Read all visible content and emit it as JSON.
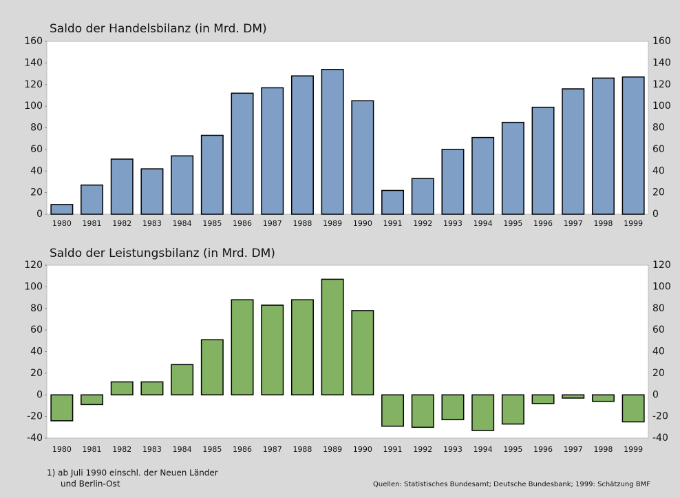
{
  "chart_data": [
    {
      "type": "bar",
      "title": "Saldo der Handelsbilanz (in Mrd. DM)",
      "categories": [
        "1980",
        "1981",
        "1982",
        "1983",
        "1984",
        "1985",
        "1986",
        "1987",
        "1988",
        "1989",
        "1990",
        "1991",
        "1992",
        "1993",
        "1994",
        "1995",
        "1996",
        "1997",
        "1998",
        "1999"
      ],
      "values": [
        9,
        27,
        51,
        42,
        54,
        73,
        112,
        117,
        128,
        134,
        105,
        22,
        33,
        60,
        71,
        85,
        99,
        116,
        126,
        127
      ],
      "color": "#7f9fc6",
      "ylim": [
        0,
        160
      ],
      "yticks": [
        0,
        20,
        40,
        60,
        80,
        100,
        120,
        140,
        160
      ]
    },
    {
      "type": "bar",
      "title": "Saldo der Leistungsbilanz (in Mrd. DM)",
      "categories": [
        "1980",
        "1981",
        "1982",
        "1983",
        "1984",
        "1985",
        "1986",
        "1987",
        "1988",
        "1989",
        "1990",
        "1991",
        "1992",
        "1993",
        "1994",
        "1995",
        "1996",
        "1997",
        "1998",
        "1999"
      ],
      "values": [
        -24,
        -9,
        12,
        12,
        28,
        51,
        88,
        83,
        88,
        107,
        78,
        -29,
        -30,
        -23,
        -33,
        -27,
        -8,
        -3,
        -6,
        -25
      ],
      "color": "#82b262",
      "ylim": [
        -40,
        120
      ],
      "yticks": [
        -40,
        -20,
        0,
        20,
        40,
        60,
        80,
        100,
        120
      ]
    }
  ],
  "footnote": [
    "1) ab Juli 1990 einschl. der Neuen Länder",
    "und Berlin-Ost"
  ],
  "source": "Quellen: Statistisches Bundesamt; Deutsche Bundesbank; 1999: Schätzung BMF"
}
